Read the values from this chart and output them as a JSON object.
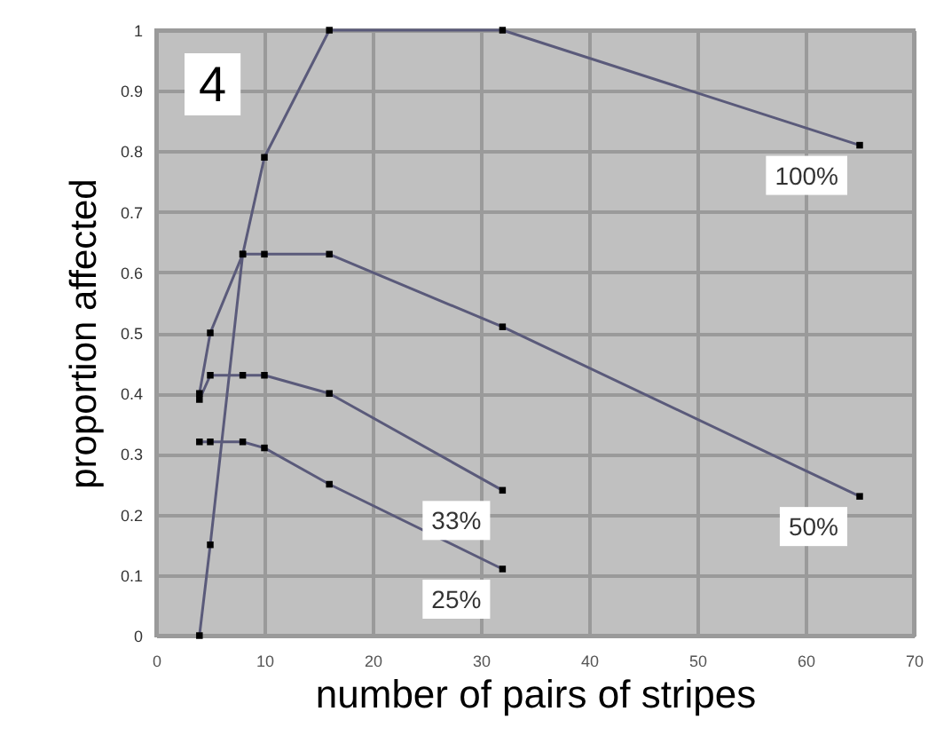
{
  "chart_data": {
    "type": "line",
    "xlabel": "number of pairs of stripes",
    "ylabel": "proportion affected",
    "annotations": [
      "4"
    ],
    "xlim": [
      0,
      70
    ],
    "xticks": [
      0,
      10,
      20,
      30,
      40,
      50,
      60,
      70
    ],
    "ylim": [
      0,
      1
    ],
    "yticks": [
      0,
      0.1,
      0.2,
      0.3,
      0.4,
      0.5,
      0.6,
      0.7,
      0.8,
      0.9,
      1
    ],
    "grid": true,
    "marker": "square",
    "line_style": "solid",
    "series": [
      {
        "name": "100%",
        "color": "#5a5a7a",
        "x": [
          4,
          5,
          8,
          10,
          16,
          32,
          65
        ],
        "values": [
          0,
          0.15,
          0.63,
          0.79,
          1,
          1,
          0.81
        ]
      },
      {
        "name": "50%",
        "color": "#5a5a7a",
        "x": [
          4,
          5,
          8,
          10,
          16,
          32,
          65
        ],
        "values": [
          0.4,
          0.5,
          0.63,
          0.63,
          0.63,
          0.51,
          0.23
        ]
      },
      {
        "name": "33%",
        "color": "#5a5a7a",
        "x": [
          4,
          5,
          8,
          10,
          16,
          32
        ],
        "values": [
          0.39,
          0.43,
          0.43,
          0.43,
          0.4,
          0.24
        ]
      },
      {
        "name": "25%",
        "color": "#5a5a7a",
        "x": [
          4,
          5,
          8,
          10,
          16,
          32
        ],
        "values": [
          0.32,
          0.32,
          0.32,
          0.31,
          0.25,
          0.11
        ]
      }
    ]
  }
}
